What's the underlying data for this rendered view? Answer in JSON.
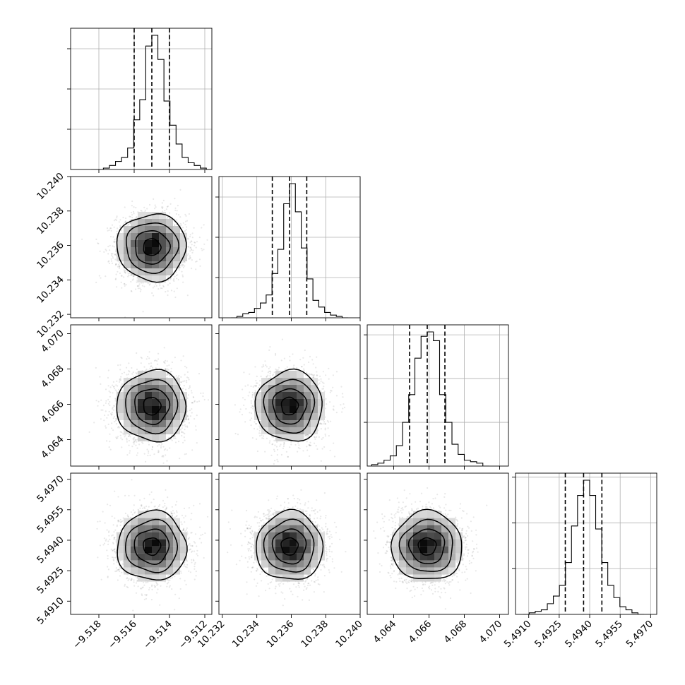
{
  "chart_data": {
    "type": "corner",
    "parameters": [
      {
        "ticks": [
          -9.518,
          -9.516,
          -9.514,
          -9.512
        ],
        "tick_labels": [
          "−9.518",
          "−9.516",
          "−9.514",
          "−9.512"
        ],
        "range": [
          -9.5196,
          -9.5116
        ],
        "median": -9.515,
        "sigma": 0.00098,
        "quantiles": [
          -9.516,
          -9.515,
          -9.514
        ],
        "hist": [
          0,
          0,
          1,
          3,
          6,
          9,
          16,
          37,
          52,
          92,
          100,
          82,
          51,
          33,
          19,
          9,
          5,
          3,
          1,
          0
        ]
      },
      {
        "ticks": [
          10.232,
          10.234,
          10.236,
          10.238,
          10.24
        ],
        "tick_labels": [
          "10.232",
          "10.234",
          "10.236",
          "10.238",
          "10.240"
        ],
        "range": [
          10.2318,
          10.24
        ],
        "median": 10.2359,
        "sigma": 0.00097,
        "quantiles": [
          10.2349,
          10.2359,
          10.2369
        ],
        "hist": [
          0,
          1,
          3,
          4,
          7,
          11,
          17,
          33,
          51,
          85,
          100,
          79,
          52,
          29,
          13,
          8,
          4,
          2,
          1,
          0
        ]
      },
      {
        "ticks": [
          4.064,
          4.066,
          4.068,
          4.07
        ],
        "tick_labels": [
          "4.064",
          "4.066",
          "4.068",
          "4.070"
        ],
        "range": [
          4.0625,
          4.0705
        ],
        "median": 4.0659,
        "sigma": 0.001,
        "quantiles": [
          4.0649,
          4.0659,
          4.0669
        ],
        "hist": [
          0,
          1,
          2,
          4,
          7,
          14,
          30,
          49,
          74,
          89,
          92,
          86,
          49,
          30,
          15,
          8,
          4,
          3,
          2,
          0
        ]
      },
      {
        "ticks": [
          5.491,
          5.4925,
          5.494,
          5.4955,
          5.497
        ],
        "tick_labels": [
          "5.4910",
          "5.4925",
          "5.4940",
          "5.4955",
          "5.4970"
        ],
        "range": [
          5.49035,
          5.4973
        ],
        "median": 5.4937,
        "sigma": 0.00085,
        "quantiles": [
          5.4928,
          5.4937,
          5.4946
        ],
        "hist": [
          0,
          1,
          2,
          3,
          7,
          12,
          19,
          34,
          58,
          78,
          88,
          78,
          56,
          34,
          19,
          11,
          5,
          3,
          1,
          0
        ]
      }
    ],
    "levels_sigma": [
      0.5,
      1.0,
      1.5,
      2.0
    ],
    "grid": true
  }
}
